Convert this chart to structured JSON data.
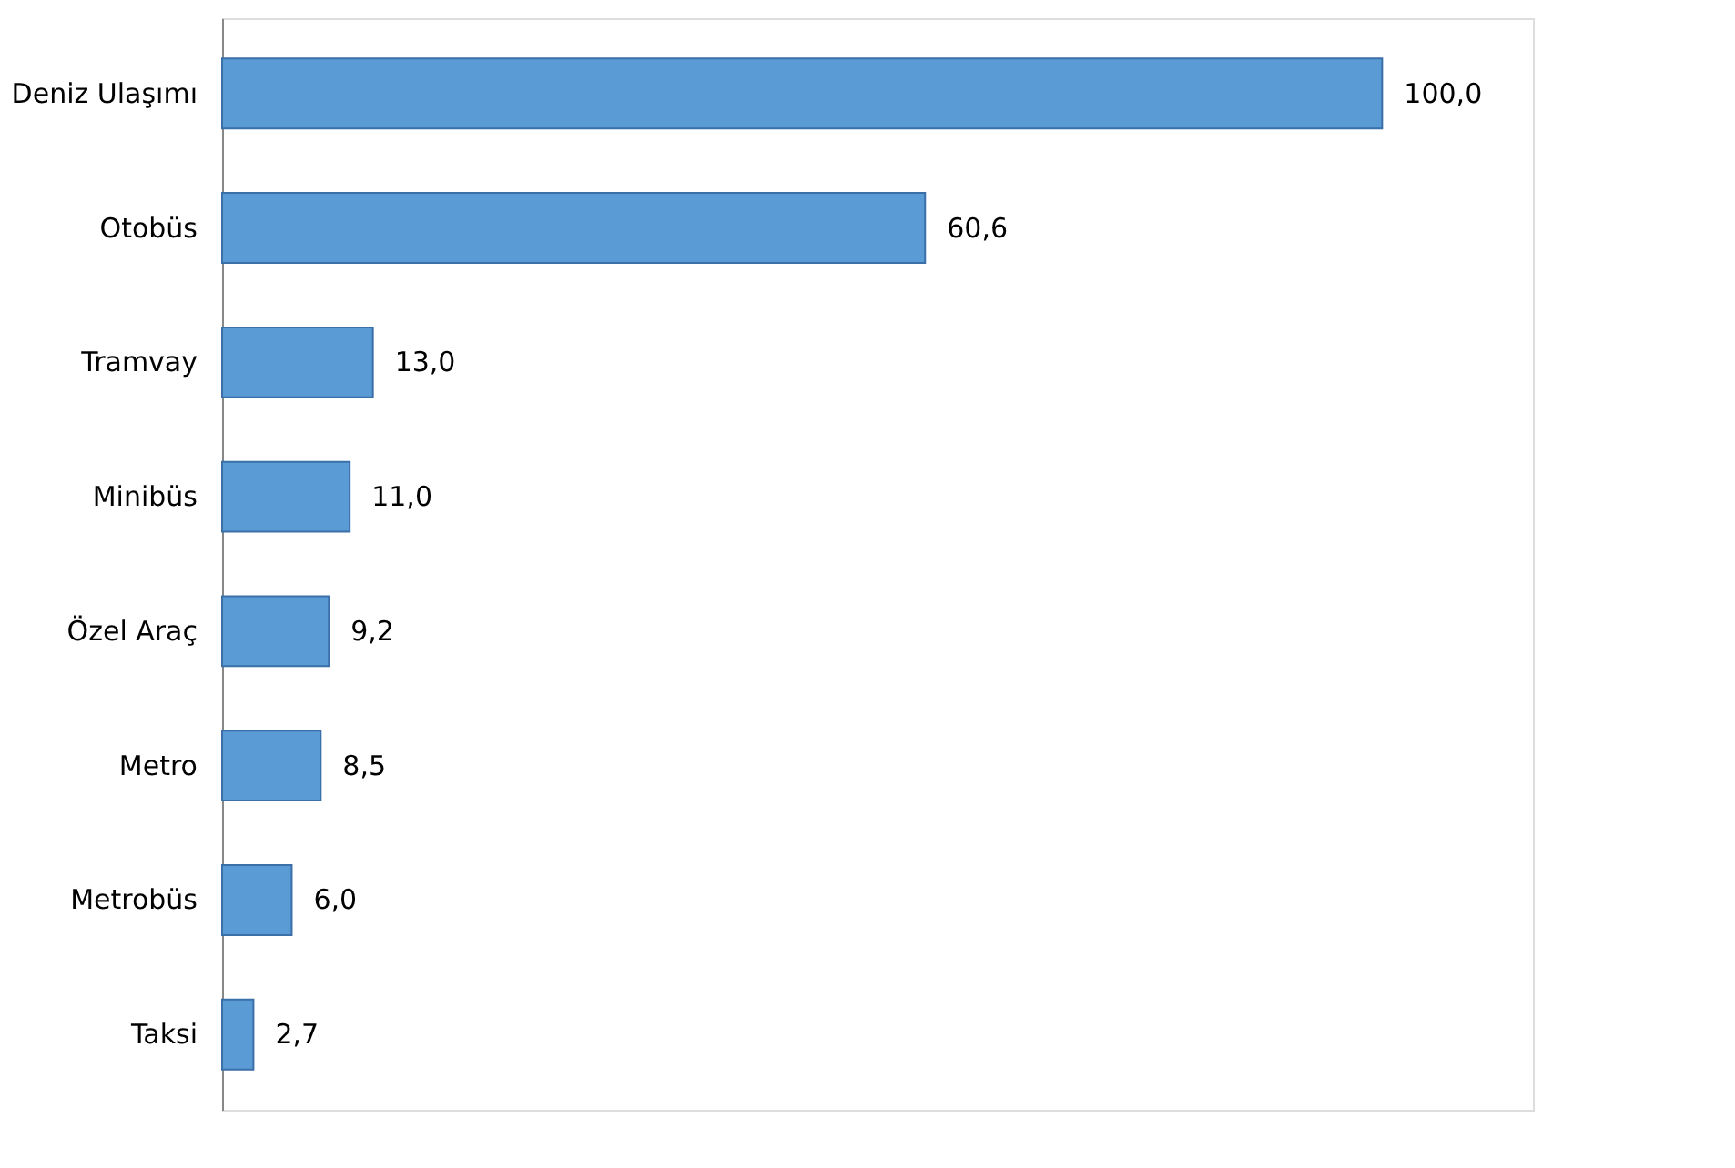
{
  "chart_data": {
    "type": "bar",
    "orientation": "horizontal",
    "data_labels": true,
    "categories": [
      "Deniz Ulaşımı",
      "Otobüs",
      "Tramvay",
      "Minibüs",
      "Özel Araç",
      "Metro",
      "Metrobüs",
      "Taksi"
    ],
    "values": [
      100.0,
      60.6,
      13.0,
      11.0,
      9.2,
      8.5,
      6.0,
      2.7
    ],
    "value_labels": [
      "100,0",
      "60,6",
      "13,0",
      "11,0",
      "9,2",
      "8,5",
      "6,0",
      "2,7"
    ],
    "color": "#5b9bd5",
    "grid": false
  }
}
